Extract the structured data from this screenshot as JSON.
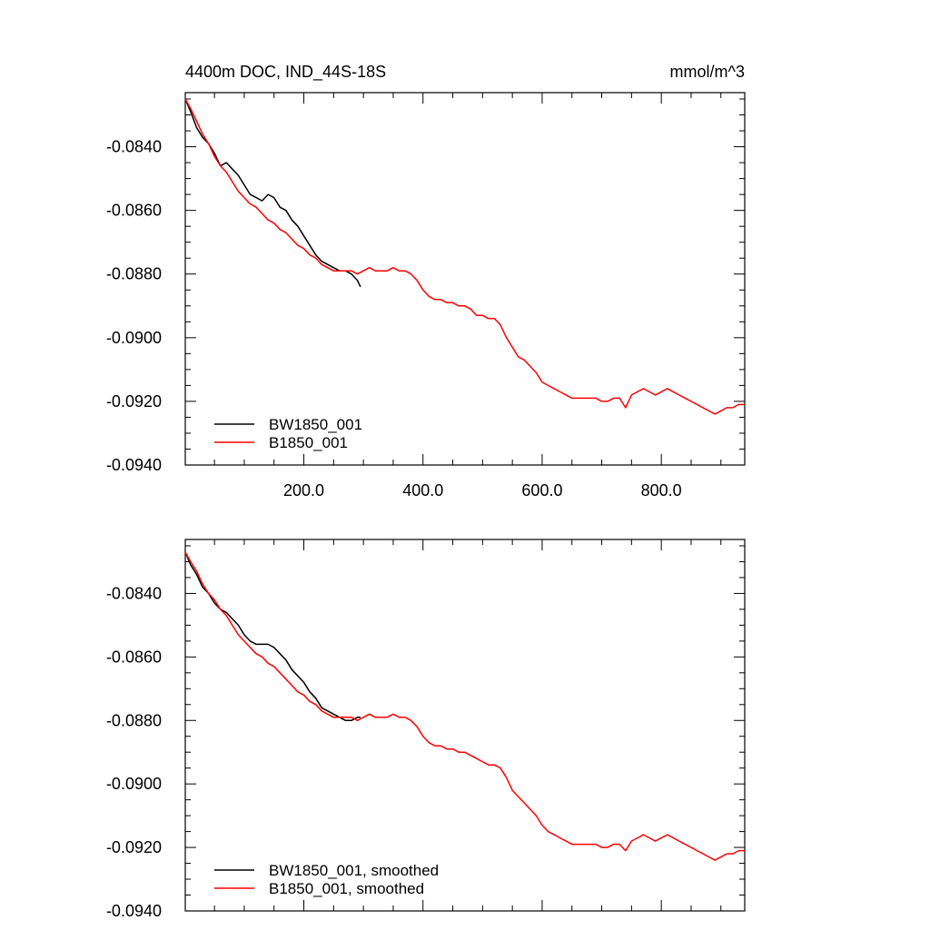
{
  "chart_data": [
    {
      "type": "line",
      "title": "4400m DOC, IND_44S-18S",
      "units": "mmol/m^3",
      "xlim": [
        1,
        940
      ],
      "ylim": [
        -0.094,
        -0.0823
      ],
      "x_tick_labels": [
        "200.0",
        "400.0",
        "600.0",
        "800.0"
      ],
      "y_tick_labels": [
        "-0.0840",
        "-0.0860",
        "-0.0880",
        "-0.0900",
        "-0.0920",
        "-0.0940"
      ],
      "legend_position": "bottom-left",
      "series": [
        {
          "name": "BW1850_001",
          "color": "#000000",
          "points": [
            [
              1,
              -0.0825
            ],
            [
              10,
              -0.0829
            ],
            [
              20,
              -0.0834
            ],
            [
              30,
              -0.0837
            ],
            [
              40,
              -0.0839
            ],
            [
              50,
              -0.0842
            ],
            [
              60,
              -0.0846
            ],
            [
              70,
              -0.0845
            ],
            [
              80,
              -0.0847
            ],
            [
              90,
              -0.0849
            ],
            [
              100,
              -0.0852
            ],
            [
              110,
              -0.0855
            ],
            [
              120,
              -0.0856
            ],
            [
              130,
              -0.0857
            ],
            [
              140,
              -0.0855
            ],
            [
              150,
              -0.0856
            ],
            [
              160,
              -0.0859
            ],
            [
              170,
              -0.086
            ],
            [
              180,
              -0.0863
            ],
            [
              190,
              -0.0865
            ],
            [
              200,
              -0.0868
            ],
            [
              210,
              -0.0871
            ],
            [
              220,
              -0.0874
            ],
            [
              230,
              -0.0876
            ],
            [
              240,
              -0.0877
            ],
            [
              250,
              -0.0878
            ],
            [
              260,
              -0.0879
            ],
            [
              270,
              -0.0879
            ],
            [
              280,
              -0.088
            ],
            [
              290,
              -0.0882
            ],
            [
              295,
              -0.0884
            ]
          ]
        },
        {
          "name": "B1850_001",
          "color": "#ff0000",
          "points": [
            [
              1,
              -0.0825
            ],
            [
              10,
              -0.0828
            ],
            [
              20,
              -0.0832
            ],
            [
              30,
              -0.0836
            ],
            [
              40,
              -0.0839
            ],
            [
              50,
              -0.0843
            ],
            [
              60,
              -0.0846
            ],
            [
              70,
              -0.0848
            ],
            [
              80,
              -0.0851
            ],
            [
              90,
              -0.0854
            ],
            [
              100,
              -0.0856
            ],
            [
              110,
              -0.0858
            ],
            [
              120,
              -0.0859
            ],
            [
              130,
              -0.0861
            ],
            [
              140,
              -0.0863
            ],
            [
              150,
              -0.0864
            ],
            [
              160,
              -0.0866
            ],
            [
              170,
              -0.0867
            ],
            [
              180,
              -0.0869
            ],
            [
              190,
              -0.0871
            ],
            [
              200,
              -0.0872
            ],
            [
              210,
              -0.0874
            ],
            [
              220,
              -0.0875
            ],
            [
              230,
              -0.0877
            ],
            [
              240,
              -0.0878
            ],
            [
              250,
              -0.0879
            ],
            [
              260,
              -0.0879
            ],
            [
              270,
              -0.0879
            ],
            [
              280,
              -0.0879
            ],
            [
              290,
              -0.088
            ],
            [
              300,
              -0.0879
            ],
            [
              310,
              -0.0878
            ],
            [
              320,
              -0.0879
            ],
            [
              330,
              -0.0879
            ],
            [
              340,
              -0.0879
            ],
            [
              350,
              -0.0878
            ],
            [
              360,
              -0.0879
            ],
            [
              370,
              -0.0879
            ],
            [
              380,
              -0.088
            ],
            [
              390,
              -0.0882
            ],
            [
              400,
              -0.0885
            ],
            [
              410,
              -0.0887
            ],
            [
              420,
              -0.0888
            ],
            [
              430,
              -0.0888
            ],
            [
              440,
              -0.0889
            ],
            [
              450,
              -0.0889
            ],
            [
              460,
              -0.089
            ],
            [
              470,
              -0.089
            ],
            [
              480,
              -0.0891
            ],
            [
              490,
              -0.0893
            ],
            [
              500,
              -0.0893
            ],
            [
              510,
              -0.0894
            ],
            [
              520,
              -0.0894
            ],
            [
              530,
              -0.0896
            ],
            [
              540,
              -0.09
            ],
            [
              550,
              -0.0903
            ],
            [
              560,
              -0.0906
            ],
            [
              570,
              -0.0907
            ],
            [
              580,
              -0.0909
            ],
            [
              590,
              -0.0911
            ],
            [
              600,
              -0.0914
            ],
            [
              610,
              -0.0915
            ],
            [
              620,
              -0.0916
            ],
            [
              630,
              -0.0917
            ],
            [
              640,
              -0.0918
            ],
            [
              650,
              -0.0919
            ],
            [
              660,
              -0.0919
            ],
            [
              670,
              -0.0919
            ],
            [
              680,
              -0.0919
            ],
            [
              690,
              -0.0919
            ],
            [
              700,
              -0.092
            ],
            [
              710,
              -0.092
            ],
            [
              720,
              -0.0919
            ],
            [
              730,
              -0.0919
            ],
            [
              740,
              -0.0922
            ],
            [
              750,
              -0.0918
            ],
            [
              760,
              -0.0917
            ],
            [
              770,
              -0.0916
            ],
            [
              780,
              -0.0917
            ],
            [
              790,
              -0.0918
            ],
            [
              800,
              -0.0917
            ],
            [
              810,
              -0.0916
            ],
            [
              820,
              -0.0917
            ],
            [
              830,
              -0.0918
            ],
            [
              840,
              -0.0919
            ],
            [
              850,
              -0.092
            ],
            [
              860,
              -0.0921
            ],
            [
              870,
              -0.0922
            ],
            [
              880,
              -0.0923
            ],
            [
              890,
              -0.0924
            ],
            [
              900,
              -0.0923
            ],
            [
              910,
              -0.0922
            ],
            [
              920,
              -0.0922
            ],
            [
              930,
              -0.0921
            ],
            [
              940,
              -0.0921
            ]
          ]
        }
      ]
    },
    {
      "type": "line",
      "xlim": [
        1,
        940
      ],
      "ylim": [
        -0.094,
        -0.0823
      ],
      "y_tick_labels": [
        "-0.0840",
        "-0.0860",
        "-0.0880",
        "-0.0900",
        "-0.0920",
        "-0.0940"
      ],
      "legend_position": "bottom-left",
      "series": [
        {
          "name": "BW1850_001, smoothed",
          "color": "#000000",
          "points": [
            [
              1,
              -0.0827
            ],
            [
              10,
              -0.0831
            ],
            [
              20,
              -0.0834
            ],
            [
              30,
              -0.0838
            ],
            [
              40,
              -0.084
            ],
            [
              50,
              -0.0843
            ],
            [
              60,
              -0.0845
            ],
            [
              70,
              -0.0846
            ],
            [
              80,
              -0.0848
            ],
            [
              90,
              -0.085
            ],
            [
              100,
              -0.0853
            ],
            [
              110,
              -0.0855
            ],
            [
              120,
              -0.0856
            ],
            [
              130,
              -0.0856
            ],
            [
              140,
              -0.0856
            ],
            [
              150,
              -0.0857
            ],
            [
              160,
              -0.0859
            ],
            [
              170,
              -0.0861
            ],
            [
              180,
              -0.0864
            ],
            [
              190,
              -0.0866
            ],
            [
              200,
              -0.0868
            ],
            [
              210,
              -0.0871
            ],
            [
              220,
              -0.0873
            ],
            [
              230,
              -0.0876
            ],
            [
              240,
              -0.0877
            ],
            [
              250,
              -0.0878
            ],
            [
              260,
              -0.0879
            ],
            [
              270,
              -0.088
            ],
            [
              280,
              -0.088
            ],
            [
              290,
              -0.0879
            ],
            [
              295,
              -0.0879
            ]
          ]
        },
        {
          "name": "B1850_001, smoothed",
          "color": "#ff0000",
          "points": [
            [
              1,
              -0.0827
            ],
            [
              10,
              -0.083
            ],
            [
              20,
              -0.0833
            ],
            [
              30,
              -0.0837
            ],
            [
              40,
              -0.084
            ],
            [
              50,
              -0.0842
            ],
            [
              60,
              -0.0845
            ],
            [
              70,
              -0.0847
            ],
            [
              80,
              -0.085
            ],
            [
              90,
              -0.0853
            ],
            [
              100,
              -0.0855
            ],
            [
              110,
              -0.0857
            ],
            [
              120,
              -0.0859
            ],
            [
              130,
              -0.086
            ],
            [
              140,
              -0.0862
            ],
            [
              150,
              -0.0863
            ],
            [
              160,
              -0.0865
            ],
            [
              170,
              -0.0867
            ],
            [
              180,
              -0.0869
            ],
            [
              190,
              -0.0871
            ],
            [
              200,
              -0.0872
            ],
            [
              210,
              -0.0874
            ],
            [
              220,
              -0.0875
            ],
            [
              230,
              -0.0877
            ],
            [
              240,
              -0.0878
            ],
            [
              250,
              -0.0879
            ],
            [
              260,
              -0.0879
            ],
            [
              270,
              -0.0879
            ],
            [
              280,
              -0.0879
            ],
            [
              290,
              -0.088
            ],
            [
              300,
              -0.0879
            ],
            [
              310,
              -0.0878
            ],
            [
              320,
              -0.0879
            ],
            [
              330,
              -0.0879
            ],
            [
              340,
              -0.0879
            ],
            [
              350,
              -0.0878
            ],
            [
              360,
              -0.0879
            ],
            [
              370,
              -0.0879
            ],
            [
              380,
              -0.088
            ],
            [
              390,
              -0.0882
            ],
            [
              400,
              -0.0885
            ],
            [
              410,
              -0.0887
            ],
            [
              420,
              -0.0888
            ],
            [
              430,
              -0.0888
            ],
            [
              440,
              -0.0889
            ],
            [
              450,
              -0.0889
            ],
            [
              460,
              -0.089
            ],
            [
              470,
              -0.089
            ],
            [
              480,
              -0.0891
            ],
            [
              490,
              -0.0892
            ],
            [
              500,
              -0.0893
            ],
            [
              510,
              -0.0894
            ],
            [
              520,
              -0.0894
            ],
            [
              530,
              -0.0895
            ],
            [
              540,
              -0.0898
            ],
            [
              550,
              -0.0902
            ],
            [
              560,
              -0.0904
            ],
            [
              570,
              -0.0906
            ],
            [
              580,
              -0.0908
            ],
            [
              590,
              -0.091
            ],
            [
              600,
              -0.0913
            ],
            [
              610,
              -0.0915
            ],
            [
              620,
              -0.0916
            ],
            [
              630,
              -0.0917
            ],
            [
              640,
              -0.0918
            ],
            [
              650,
              -0.0919
            ],
            [
              660,
              -0.0919
            ],
            [
              670,
              -0.0919
            ],
            [
              680,
              -0.0919
            ],
            [
              690,
              -0.0919
            ],
            [
              700,
              -0.092
            ],
            [
              710,
              -0.092
            ],
            [
              720,
              -0.0919
            ],
            [
              730,
              -0.0919
            ],
            [
              740,
              -0.0921
            ],
            [
              750,
              -0.0918
            ],
            [
              760,
              -0.0917
            ],
            [
              770,
              -0.0916
            ],
            [
              780,
              -0.0917
            ],
            [
              790,
              -0.0918
            ],
            [
              800,
              -0.0917
            ],
            [
              810,
              -0.0916
            ],
            [
              820,
              -0.0917
            ],
            [
              830,
              -0.0918
            ],
            [
              840,
              -0.0919
            ],
            [
              850,
              -0.092
            ],
            [
              860,
              -0.0921
            ],
            [
              870,
              -0.0922
            ],
            [
              880,
              -0.0923
            ],
            [
              890,
              -0.0924
            ],
            [
              900,
              -0.0923
            ],
            [
              910,
              -0.0922
            ],
            [
              920,
              -0.0922
            ],
            [
              930,
              -0.0921
            ],
            [
              940,
              -0.0921
            ]
          ]
        }
      ]
    }
  ]
}
